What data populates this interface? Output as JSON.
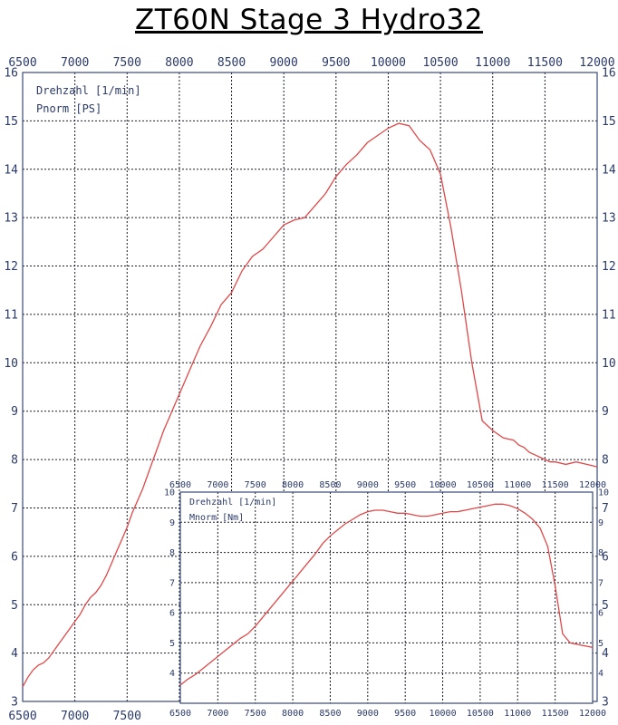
{
  "title": "ZT60N  Stage 3  Hydro32",
  "colors": {
    "curve": "#e04848",
    "grid": "#1a1a2a",
    "ticks": "#2a3a6a"
  },
  "chart_data": [
    {
      "type": "line",
      "legend": [
        "Drehzahl [1/min]",
        "Pnorm [PS]"
      ],
      "legend_position": "top-left",
      "grid": true,
      "xlim": [
        6500,
        12000
      ],
      "ylim": [
        3,
        16
      ],
      "x_ticks_top": [
        6500,
        7000,
        7500,
        8000,
        8500,
        9000,
        9500,
        10000,
        10500,
        11000,
        11500,
        12000
      ],
      "x_ticks_bottom": [
        6500,
        7000,
        7500
      ],
      "y_ticks": [
        3,
        4,
        5,
        6,
        7,
        8,
        9,
        10,
        11,
        12,
        13,
        14,
        15,
        16
      ],
      "x": [
        6500,
        6550,
        6600,
        6650,
        6700,
        6750,
        6800,
        6850,
        6900,
        6950,
        7000,
        7050,
        7100,
        7150,
        7200,
        7250,
        7300,
        7350,
        7400,
        7450,
        7500,
        7550,
        7600,
        7650,
        7700,
        7750,
        7800,
        7850,
        7900,
        7950,
        8000,
        8100,
        8200,
        8300,
        8400,
        8500,
        8600,
        8700,
        8800,
        8900,
        9000,
        9100,
        9200,
        9300,
        9400,
        9500,
        9600,
        9700,
        9800,
        9900,
        10000,
        10100,
        10200,
        10300,
        10400,
        10500,
        10600,
        10700,
        10800,
        10900,
        11000,
        11100,
        11200,
        11250,
        11300,
        11350,
        11400,
        11450,
        11500,
        11550,
        11600,
        11700,
        11800,
        11900,
        12000
      ],
      "y": [
        3.3,
        3.5,
        3.65,
        3.75,
        3.8,
        3.9,
        4.05,
        4.2,
        4.35,
        4.5,
        4.65,
        4.8,
        5.0,
        5.15,
        5.25,
        5.4,
        5.6,
        5.85,
        6.1,
        6.35,
        6.6,
        6.9,
        7.15,
        7.4,
        7.7,
        8.0,
        8.3,
        8.6,
        8.85,
        9.1,
        9.35,
        9.85,
        10.35,
        10.75,
        11.2,
        11.45,
        11.9,
        12.2,
        12.35,
        12.6,
        12.85,
        12.95,
        13.0,
        13.25,
        13.5,
        13.85,
        14.1,
        14.3,
        14.55,
        14.7,
        14.85,
        14.95,
        14.9,
        14.6,
        14.4,
        13.9,
        12.8,
        11.5,
        10.0,
        8.8,
        8.6,
        8.45,
        8.4,
        8.3,
        8.25,
        8.15,
        8.1,
        8.05,
        8.0,
        7.95,
        7.95,
        7.9,
        7.95,
        7.9,
        7.85
      ]
    },
    {
      "type": "line",
      "legend": [
        "Drehzahl [1/min]",
        "Mnorm [Nm]"
      ],
      "legend_position": "top-left",
      "grid": true,
      "xlim": [
        6500,
        12000
      ],
      "ylim": [
        3,
        10
      ],
      "x_ticks_top": [
        6500,
        7000,
        7500,
        8000,
        8500,
        9000,
        9500,
        10000,
        10500,
        11000,
        11500,
        12000
      ],
      "x_ticks_bottom": [
        6500,
        7000,
        7500,
        8000,
        8500,
        9000,
        9500,
        10000,
        10500,
        11000,
        11500,
        12000
      ],
      "y_ticks": [
        4,
        5,
        6,
        7,
        8,
        9,
        10
      ],
      "x": [
        6500,
        6600,
        6700,
        6800,
        6900,
        7000,
        7100,
        7200,
        7300,
        7400,
        7500,
        7600,
        7700,
        7800,
        7900,
        8000,
        8100,
        8200,
        8300,
        8400,
        8500,
        8600,
        8700,
        8800,
        8900,
        9000,
        9100,
        9200,
        9300,
        9400,
        9500,
        9600,
        9700,
        9800,
        9900,
        10000,
        10100,
        10200,
        10300,
        10400,
        10500,
        10600,
        10700,
        10800,
        10900,
        11000,
        11100,
        11200,
        11300,
        11400,
        11500,
        11600,
        11700,
        11800,
        11900,
        12000
      ],
      "y": [
        3.6,
        3.8,
        3.95,
        4.15,
        4.35,
        4.55,
        4.75,
        4.95,
        5.15,
        5.3,
        5.55,
        5.85,
        6.15,
        6.45,
        6.75,
        7.05,
        7.35,
        7.65,
        7.95,
        8.3,
        8.55,
        8.75,
        8.95,
        9.1,
        9.25,
        9.35,
        9.4,
        9.4,
        9.35,
        9.3,
        9.3,
        9.25,
        9.2,
        9.2,
        9.25,
        9.3,
        9.35,
        9.35,
        9.4,
        9.45,
        9.5,
        9.55,
        9.6,
        9.6,
        9.55,
        9.45,
        9.3,
        9.1,
        8.8,
        8.2,
        6.9,
        5.3,
        5.0,
        4.95,
        4.9,
        4.85
      ]
    }
  ]
}
